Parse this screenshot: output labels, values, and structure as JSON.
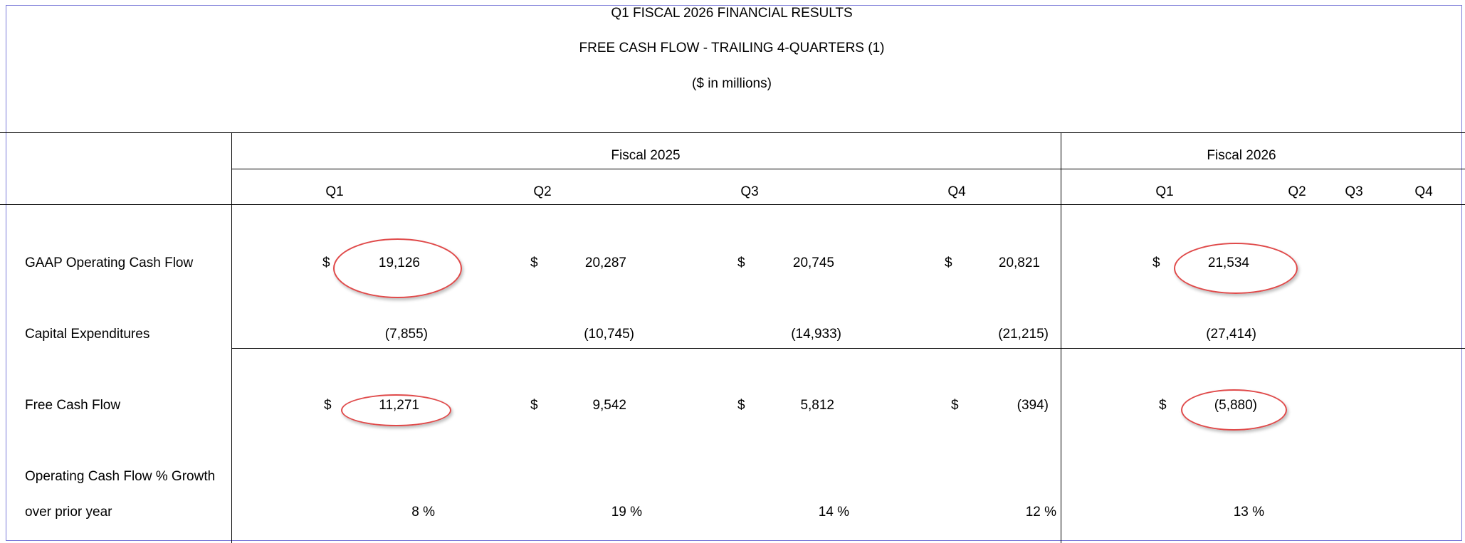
{
  "title": {
    "line1": "Q1 FISCAL 2026 FINANCIAL RESULTS",
    "line2": "FREE CASH FLOW - TRAILING 4-QUARTERS (1)",
    "line3": "($ in millions)"
  },
  "fiscal_headers": [
    "Fiscal 2025",
    "Fiscal 2026"
  ],
  "quarters": [
    "Q1",
    "Q2",
    "Q3",
    "Q4",
    "Q1",
    "Q2",
    "Q3",
    "Q4"
  ],
  "currency_symbol": "$",
  "rows": {
    "gaap_ocf": {
      "label": "GAAP Operating Cash Flow",
      "values": [
        "19,126",
        "20,287",
        "20,745",
        "20,821",
        "21,534"
      ]
    },
    "capex": {
      "label": "Capital Expenditures",
      "values": [
        "(7,855)",
        "(10,745)",
        "(14,933)",
        "(21,215)",
        "(27,414)"
      ]
    },
    "fcf": {
      "label": "Free Cash Flow",
      "values": [
        "11,271",
        "9,542",
        "5,812",
        "(394)",
        "(5,880)"
      ]
    },
    "growth": {
      "label_line1": "Operating Cash Flow % Growth",
      "label_line2": "over prior year",
      "values": [
        "8 %",
        "19 %",
        "14 %",
        "12 %",
        "13 %"
      ]
    }
  },
  "highlighted_cells": [
    "gaap_ocf Fiscal 2025 Q1",
    "gaap_ocf Fiscal 2026 Q1",
    "fcf Fiscal 2025 Q1",
    "fcf Fiscal 2026 Q1"
  ],
  "colors": {
    "frame": "#7b7bd8",
    "highlight": "#e04a4a"
  }
}
